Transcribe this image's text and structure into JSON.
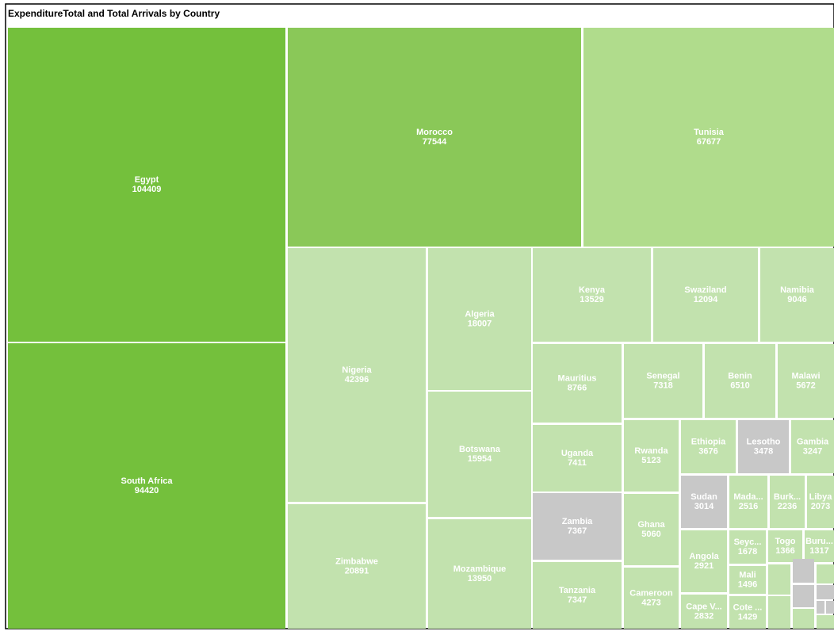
{
  "chart_data": {
    "type": "treemap",
    "title": "ExpenditureTotal and Total Arrivals by Country",
    "categories": [
      "Egypt",
      "South Africa",
      "Morocco",
      "Tunisia",
      "Nigeria",
      "Zimbabwe",
      "Algeria",
      "Botswana",
      "Mozambique",
      "Kenya",
      "Swaziland",
      "Namibia",
      "Mauritius",
      "Uganda",
      "Zambia",
      "Tanzania",
      "Senegal",
      "Benin",
      "Malawi",
      "Rwanda",
      "Ghana",
      "Cameroon",
      "Ethiopia",
      "Lesotho",
      "Gambia",
      "Sudan",
      "Mada...",
      "Burk...",
      "Libya",
      "Angola",
      "Cape V...",
      "Seyc...",
      "Mali",
      "Cote ...",
      "Togo",
      "Buru...",
      null,
      null,
      null,
      null,
      null,
      null,
      null,
      null,
      null,
      null
    ],
    "values": [
      104409,
      94420,
      77544,
      67677,
      42396,
      20891,
      18007,
      15954,
      13950,
      13529,
      12094,
      9046,
      8766,
      7411,
      7367,
      7347,
      7318,
      6510,
      5672,
      5123,
      5060,
      4273,
      3676,
      3478,
      3247,
      3014,
      2516,
      2236,
      2073,
      2921,
      2832,
      1678,
      1496,
      1429,
      1366,
      1317,
      1100,
      900,
      800,
      600,
      1200,
      700,
      400,
      200,
      200,
      400
    ],
    "colors": [
      "#74c03c",
      "#74c03c",
      "#8ac858",
      "#b0dc8c",
      "#c2e2ae",
      "#c2e2ae",
      "#c2e2ae",
      "#c2e2ae",
      "#c2e2ae",
      "#c2e2ae",
      "#c2e2ae",
      "#c2e2ae",
      "#c2e2ae",
      "#c2e2ae",
      "#c8c8c8",
      "#c2e2ae",
      "#c2e2ae",
      "#c2e2ae",
      "#c2e2ae",
      "#c2e2ae",
      "#c2e2ae",
      "#c2e2ae",
      "#c2e2ae",
      "#c8c8c8",
      "#c2e2ae",
      "#c8c8c8",
      "#c2e2ae",
      "#c2e2ae",
      "#c2e2ae",
      "#c2e2ae",
      "#c2e2ae",
      "#c2e2ae",
      "#c2e2ae",
      "#c2e2ae",
      "#c2e2ae",
      "#c2e2ae",
      "#c2e2ae",
      "#c8c8c8",
      "#c8c8c8",
      "#c2e2ae",
      "#c2e2ae",
      "#c2e2ae",
      "#c8c8c8",
      "#c8c8c8",
      "#c8c8c8",
      "#c2e2ae"
    ]
  }
}
